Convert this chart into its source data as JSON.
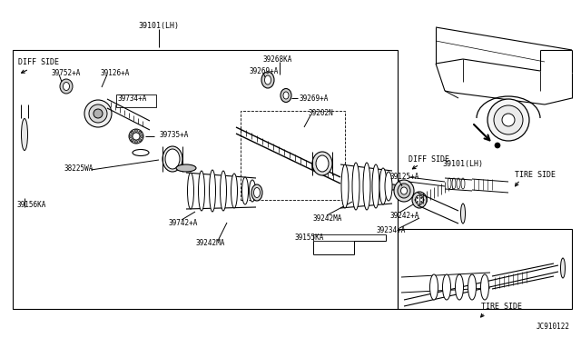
{
  "bg_color": "#ffffff",
  "line_color": "#000000",
  "fig_width": 6.4,
  "fig_height": 3.72,
  "diagram_code": "JC910122",
  "labels": {
    "title_main": "39101(LH)",
    "diff_side_left": "DIFF SIDE",
    "diff_side_right": "DIFF SIDE",
    "tire_side_top": "TIRE SIDE",
    "tire_side_bottom": "TIRE SIDE",
    "part_39101lh": "39101(LH)",
    "part_39752": "39752+A",
    "part_39126": "39126+A",
    "part_39734": "39734+A",
    "part_39735": "39735+A",
    "part_38225": "38225WA",
    "part_39156": "39156KA",
    "part_39742": "39742+A",
    "part_39242ma_1": "39242MA",
    "part_39242ma_2": "39242MA",
    "part_39155": "39155KA",
    "part_39268": "39268KA",
    "part_39269_1": "39269+A",
    "part_39269_2": "39269+A",
    "part_39202": "39202N",
    "part_39125": "39125+A",
    "part_39242": "39242+A",
    "part_39234": "39234+A"
  },
  "font_size_labels": 5.5,
  "font_size_title": 6.0,
  "font_size_side": 6.0,
  "font_size_code": 5.5
}
